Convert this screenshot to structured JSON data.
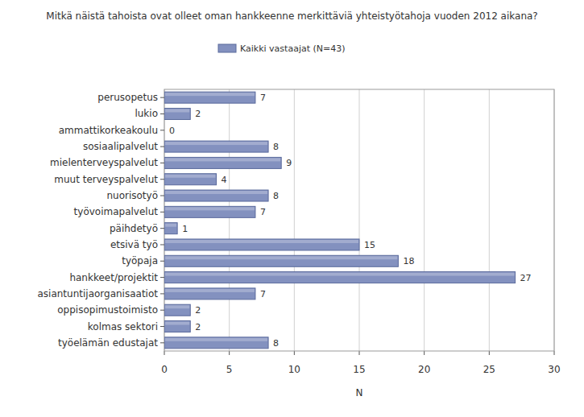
{
  "chart_data": {
    "type": "bar",
    "orientation": "horizontal",
    "title": "Mitkä näistä tahoista ovat olleet oman hankkeenne merkittäviä yhteistyötahoja vuoden 2012 aikana?",
    "categories": [
      "perusopetus",
      "lukio",
      "ammattikorkeakoulu",
      "sosiaalipalvelut",
      "mielenterveyspalvelut",
      "muut terveyspalvelut",
      "nuorisotyö",
      "työvoimapalvelut",
      "päihdetyö",
      "etsivä työ",
      "työpaja",
      "hankkeet/projektit",
      "asiantuntijaorganisaatiot",
      "oppisopimustoimisto",
      "kolmas sektori",
      "työelämän edustajat"
    ],
    "series": [
      {
        "name": "Kaikki vastaajat (N=43)",
        "color": "#8391bf",
        "values": [
          7,
          2,
          0,
          8,
          9,
          4,
          8,
          7,
          1,
          15,
          18,
          27,
          7,
          2,
          2,
          8
        ]
      }
    ],
    "xlabel": "N",
    "xlim": [
      0,
      30
    ],
    "xticks": [
      0,
      5,
      10,
      15,
      20,
      25,
      30
    ],
    "grid": true,
    "legend": "top",
    "data_labels": true
  }
}
